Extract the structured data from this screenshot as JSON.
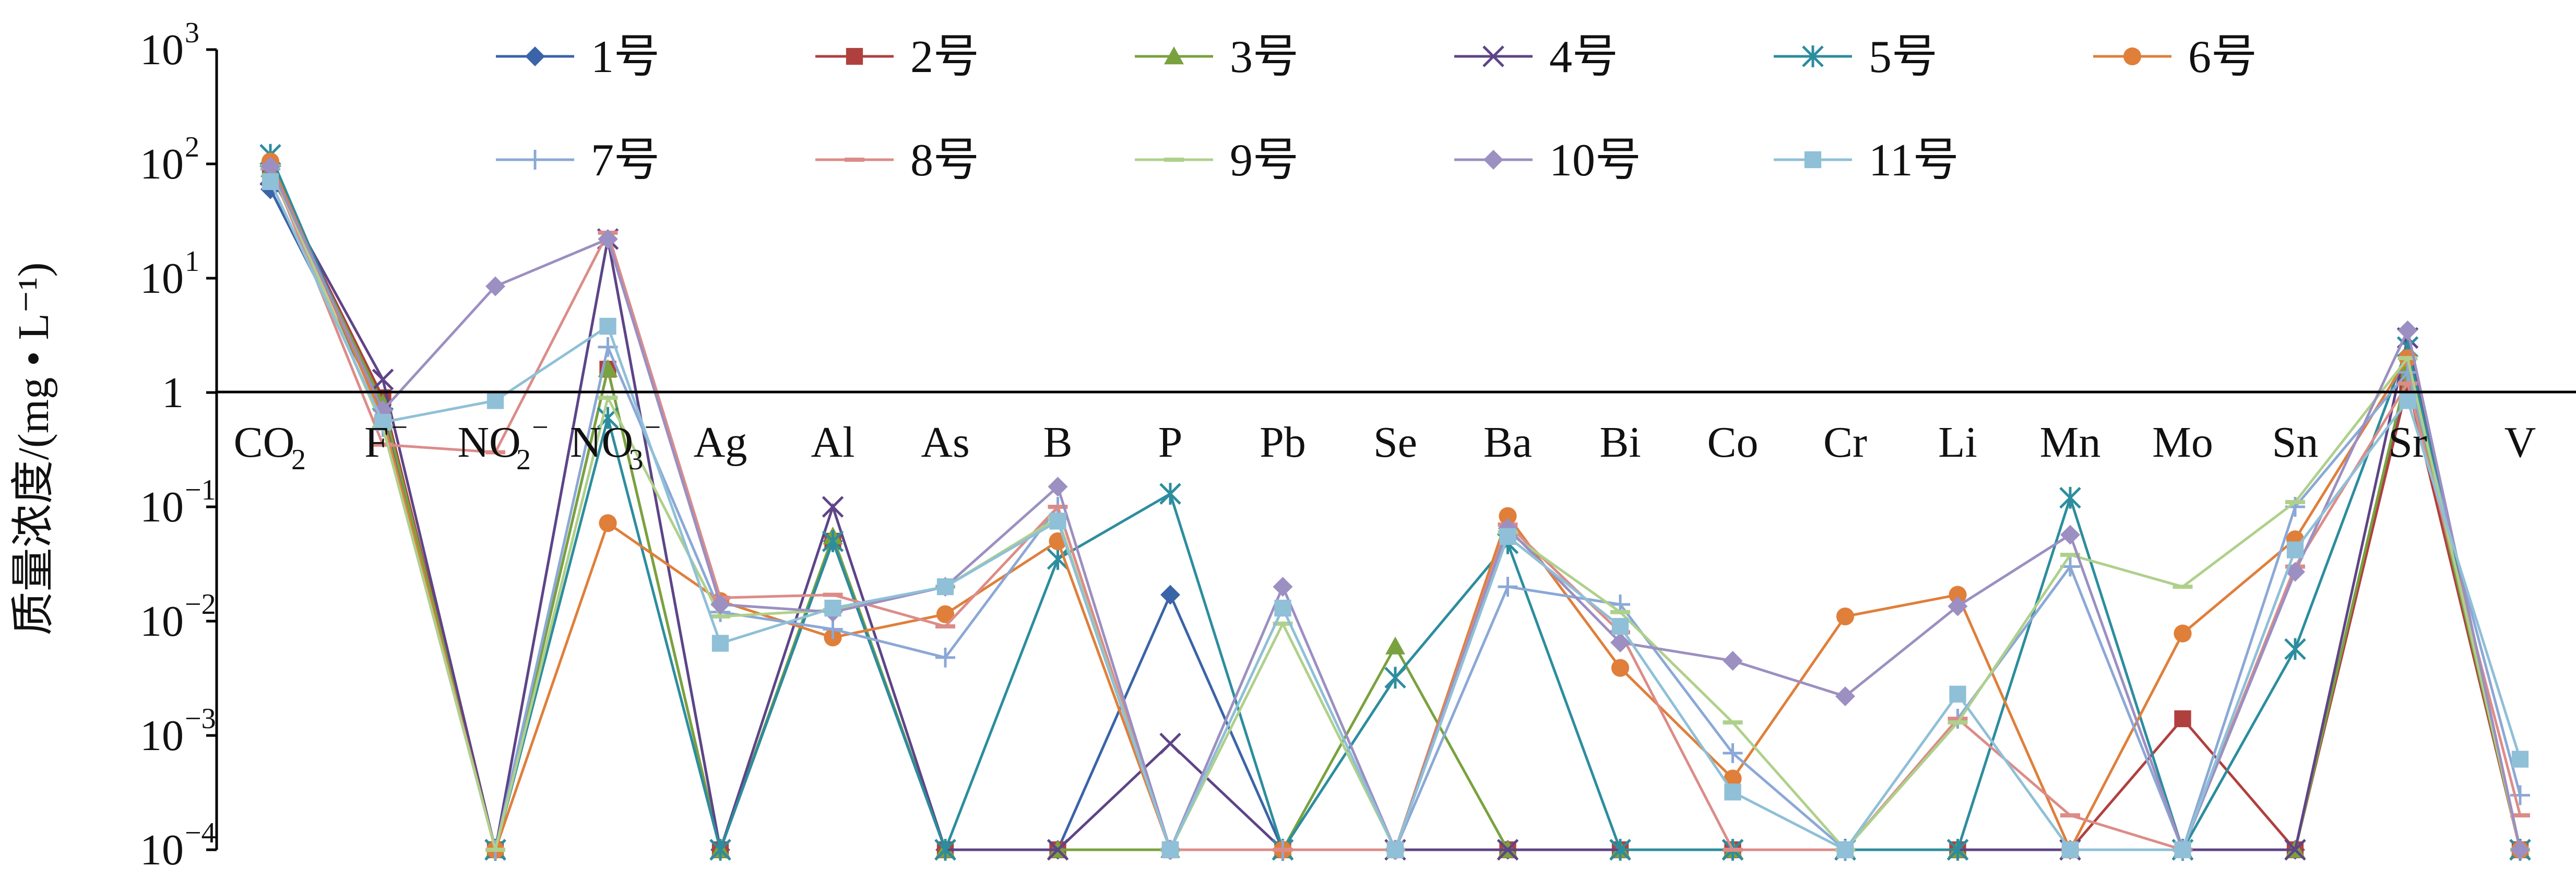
{
  "chart_data": {
    "type": "line",
    "yscale": "log",
    "ylim": [
      0.0001,
      1000
    ],
    "ylabel": "质量浓度/(mg • L⁻¹)",
    "xlabel": "",
    "grid": false,
    "legend_position": "top",
    "y_ticks": [
      {
        "value": 1000,
        "base": "10",
        "exp": "3"
      },
      {
        "value": 100,
        "base": "10",
        "exp": "2"
      },
      {
        "value": 10,
        "base": "10",
        "exp": "1"
      },
      {
        "value": 1,
        "base": "1",
        "exp": ""
      },
      {
        "value": 0.1,
        "base": "10",
        "exp": "−1"
      },
      {
        "value": 0.01,
        "base": "10",
        "exp": "−2"
      },
      {
        "value": 0.001,
        "base": "10",
        "exp": "−3"
      },
      {
        "value": 0.0001,
        "base": "10",
        "exp": "−4"
      }
    ],
    "categories": [
      {
        "base": "CO",
        "sub": "2",
        "sup": ""
      },
      {
        "base": "F",
        "sub": "",
        "sup": "−"
      },
      {
        "base": "NO",
        "sub": "2",
        "sup": "−"
      },
      {
        "base": "NO",
        "sub": "3",
        "sup": "−"
      },
      {
        "base": "Ag",
        "sub": "",
        "sup": ""
      },
      {
        "base": "Al",
        "sub": "",
        "sup": ""
      },
      {
        "base": "As",
        "sub": "",
        "sup": ""
      },
      {
        "base": "B",
        "sub": "",
        "sup": ""
      },
      {
        "base": "P",
        "sub": "",
        "sup": ""
      },
      {
        "base": "Pb",
        "sub": "",
        "sup": ""
      },
      {
        "base": "Se",
        "sub": "",
        "sup": ""
      },
      {
        "base": "Ba",
        "sub": "",
        "sup": ""
      },
      {
        "base": "Bi",
        "sub": "",
        "sup": ""
      },
      {
        "base": "Co",
        "sub": "",
        "sup": ""
      },
      {
        "base": "Cr",
        "sub": "",
        "sup": ""
      },
      {
        "base": "Li",
        "sub": "",
        "sup": ""
      },
      {
        "base": "Mn",
        "sub": "",
        "sup": ""
      },
      {
        "base": "Mo",
        "sub": "",
        "sup": ""
      },
      {
        "base": "Sn",
        "sub": "",
        "sup": ""
      },
      {
        "base": "Sr",
        "sub": "",
        "sup": ""
      },
      {
        "base": "V",
        "sub": "",
        "sup": ""
      }
    ],
    "series": [
      {
        "name": "1号",
        "color": "#3a64a8",
        "marker": "diamond",
        "values": [
          60,
          0.7,
          0.0001,
          22,
          0.0001,
          0.05,
          0.0001,
          0.0001,
          0.017,
          0.0001,
          0.0001,
          0.0001,
          0.0001,
          0.0001,
          0.0001,
          0.0001,
          0.0001,
          0.0001,
          0.0001,
          1.5,
          0.0001
        ]
      },
      {
        "name": "2号",
        "color": "#b0403e",
        "marker": "square",
        "values": [
          90,
          0.9,
          0.0001,
          1.6,
          0.0001,
          0.05,
          0.0001,
          0.0001,
          0.0001,
          0.0001,
          0.0001,
          0.0001,
          0.0001,
          0.0001,
          0.0001,
          0.0001,
          0.0001,
          0.0014,
          0.0001,
          1.2,
          0.0001
        ]
      },
      {
        "name": "3号",
        "color": "#79a23e",
        "marker": "triangle",
        "values": [
          90,
          0.8,
          0.0001,
          1.6,
          0.0001,
          0.055,
          0.0001,
          0.0001,
          0.0001,
          0.0001,
          0.006,
          0.0001,
          0.0001,
          0.0001,
          0.0001,
          0.0001,
          0.0001,
          0.0001,
          0.0001,
          1.6,
          0.0001
        ]
      },
      {
        "name": "4号",
        "color": "#5e4487",
        "marker": "x",
        "values": [
          80,
          1.3,
          0.0001,
          22,
          0.0001,
          0.1,
          0.0001,
          0.0001,
          0.00085,
          0.0001,
          0.0001,
          0.0001,
          0.0001,
          0.0001,
          0.0001,
          0.0001,
          0.0001,
          0.0001,
          0.0001,
          3.0,
          0.0001
        ]
      },
      {
        "name": "5号",
        "color": "#2c8d9e",
        "marker": "star",
        "values": [
          120,
          0.6,
          0.0001,
          0.6,
          0.0001,
          0.05,
          0.0001,
          0.035,
          0.13,
          0.0001,
          0.0032,
          0.048,
          0.0001,
          0.0001,
          0.0001,
          0.0001,
          0.12,
          0.0001,
          0.0057,
          2.5,
          0.0001
        ]
      },
      {
        "name": "6号",
        "color": "#df7f3a",
        "marker": "circle",
        "values": [
          105,
          0.6,
          0.0001,
          0.072,
          0.015,
          0.0072,
          0.0115,
          0.05,
          0.0001,
          0.0001,
          0.0001,
          0.083,
          0.0039,
          0.00042,
          0.011,
          0.017,
          0.0001,
          0.0078,
          0.052,
          2.0,
          0.0001
        ]
      },
      {
        "name": "7号",
        "color": "#8ba8d6",
        "marker": "plus",
        "values": [
          90,
          0.5,
          0.0001,
          2.5,
          0.012,
          0.0085,
          0.0048,
          0.1,
          0.0001,
          0.0001,
          0.0001,
          0.02,
          0.014,
          0.0007,
          0.0001,
          0.0014,
          0.03,
          0.0001,
          0.1,
          1.5,
          0.0003
        ]
      },
      {
        "name": "8号",
        "color": "#dc8c88",
        "marker": "dash",
        "values": [
          95,
          0.35,
          0.3,
          25,
          0.016,
          0.017,
          0.009,
          0.1,
          0.0001,
          0.0001,
          0.0001,
          0.07,
          0.008,
          0.0001,
          0.0001,
          0.0014,
          0.0002,
          0.0001,
          0.03,
          1.2,
          0.0002
        ]
      },
      {
        "name": "9号",
        "color": "#afd08b",
        "marker": "dash",
        "values": [
          95,
          0.5,
          0.0001,
          0.9,
          0.011,
          0.0125,
          0.02,
          0.08,
          0.0001,
          0.0095,
          0.0001,
          0.06,
          0.012,
          0.0013,
          0.0001,
          0.0013,
          0.038,
          0.02,
          0.11,
          2.0,
          0.0001
        ]
      },
      {
        "name": "10号",
        "color": "#9c8fc1",
        "marker": "diamond",
        "values": [
          95,
          0.7,
          8.5,
          22,
          0.014,
          0.012,
          0.02,
          0.15,
          0.0001,
          0.02,
          0.0001,
          0.065,
          0.0065,
          0.0045,
          0.0022,
          0.0135,
          0.057,
          0.0001,
          0.027,
          3.5,
          0.0001
        ]
      },
      {
        "name": "11号",
        "color": "#8fc0d7",
        "marker": "square",
        "values": [
          70,
          0.55,
          0.85,
          3.8,
          0.0064,
          0.013,
          0.02,
          0.075,
          0.0001,
          0.013,
          0.0001,
          0.055,
          0.009,
          0.00032,
          0.0001,
          0.0023,
          0.0001,
          0.0001,
          0.042,
          0.85,
          0.00062
        ]
      }
    ]
  }
}
